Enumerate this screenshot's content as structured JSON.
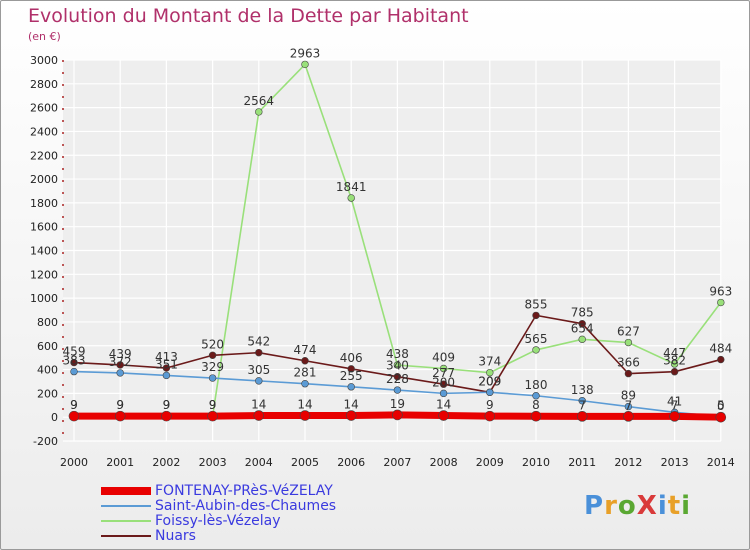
{
  "chart_data": {
    "type": "line",
    "title": "Evolution du Montant de la Dette par Habitant",
    "unit": "(en €)",
    "categories": [
      "2000",
      "2001",
      "2002",
      "2003",
      "2004",
      "2005",
      "2006",
      "2007",
      "2008",
      "2009",
      "2010",
      "2011",
      "2012",
      "2013",
      "2014"
    ],
    "ylim": [
      -200,
      3000
    ],
    "yticks": [
      -200,
      0,
      200,
      400,
      600,
      800,
      1000,
      1200,
      1400,
      1600,
      1800,
      2000,
      2200,
      2400,
      2600,
      2800,
      3000
    ],
    "grid": true,
    "legend_position": "bottom-left",
    "series": [
      {
        "name": "FONTENAY-PRèS-VéZELAY",
        "color": "#e80000",
        "values": [
          9,
          9,
          9,
          9,
          14,
          14,
          14,
          19,
          14,
          9,
          8,
          7,
          7,
          7,
          0
        ]
      },
      {
        "name": "Saint-Aubin-des-Chaumes",
        "color": "#5b9bd5",
        "values": [
          383,
          372,
          351,
          329,
          305,
          281,
          255,
          228,
          200,
          209,
          180,
          138,
          89,
          41,
          5
        ]
      },
      {
        "name": "Foissy-lès-Vézelay",
        "color": "#99e07a",
        "values": [
          9,
          9,
          9,
          9,
          2564,
          2963,
          1841,
          438,
          409,
          374,
          565,
          654,
          627,
          447,
          963
        ]
      },
      {
        "name": "Nuars",
        "color": "#6b1a1a",
        "values": [
          459,
          439,
          413,
          520,
          542,
          474,
          406,
          340,
          277,
          209,
          855,
          785,
          366,
          382,
          484
        ]
      }
    ]
  },
  "logo": {
    "text": "ProXiti"
  }
}
